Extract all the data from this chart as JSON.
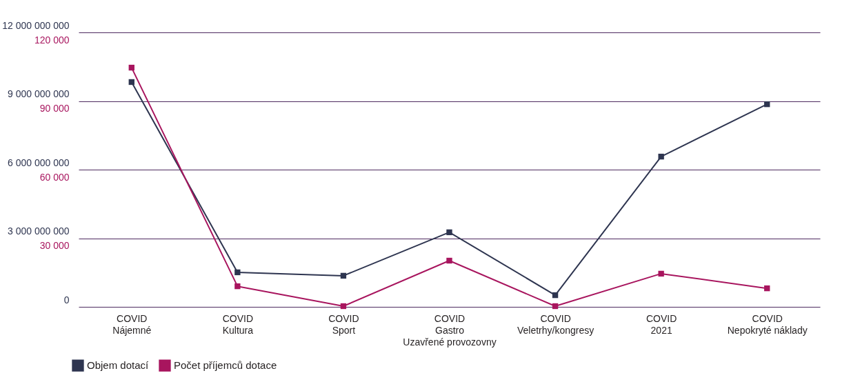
{
  "chart_data": {
    "type": "line",
    "categories": [
      "COVID\nNájemné",
      "COVID\nKultura",
      "COVID\nSport",
      "COVID\nGastro\nUzavřené provozovny",
      "COVID\nVeletrhy/kongresy",
      "COVID\n2021",
      "COVID\nNepokryté náklady"
    ],
    "series": [
      {
        "name": "Objem dotací",
        "color": "#2e3550",
        "values": [
          9830000000,
          1510000000,
          1360000000,
          3260000000,
          510000000,
          6570000000,
          8860000000
        ]
      },
      {
        "name": "Počet příjemců dotace",
        "color": "#a8155e",
        "axis": "y2",
        "values": [
          104600,
          9000,
          300,
          20200,
          300,
          14500,
          8100
        ]
      }
    ],
    "ylim": [
      0,
      12000000000
    ],
    "yticks": [
      {
        "value": 0,
        "label": "0"
      },
      {
        "value": 3000000000,
        "label": "3 000 000 000"
      },
      {
        "value": 6000000000,
        "label": "6 000 000 000"
      },
      {
        "value": 9000000000,
        "label": "9 000 000 000"
      },
      {
        "value": 12000000000,
        "label": "12 000 000 000"
      }
    ],
    "y2lim": [
      0,
      120000
    ],
    "y2ticks": [
      {
        "value": 30000,
        "label": "30 000"
      },
      {
        "value": 60000,
        "label": "60 000"
      },
      {
        "value": 90000,
        "label": "90 000"
      },
      {
        "value": 120000,
        "label": "120 000"
      }
    ],
    "grid": "y",
    "legend": "bottom left",
    "marker": "square",
    "line_style": "solid"
  }
}
